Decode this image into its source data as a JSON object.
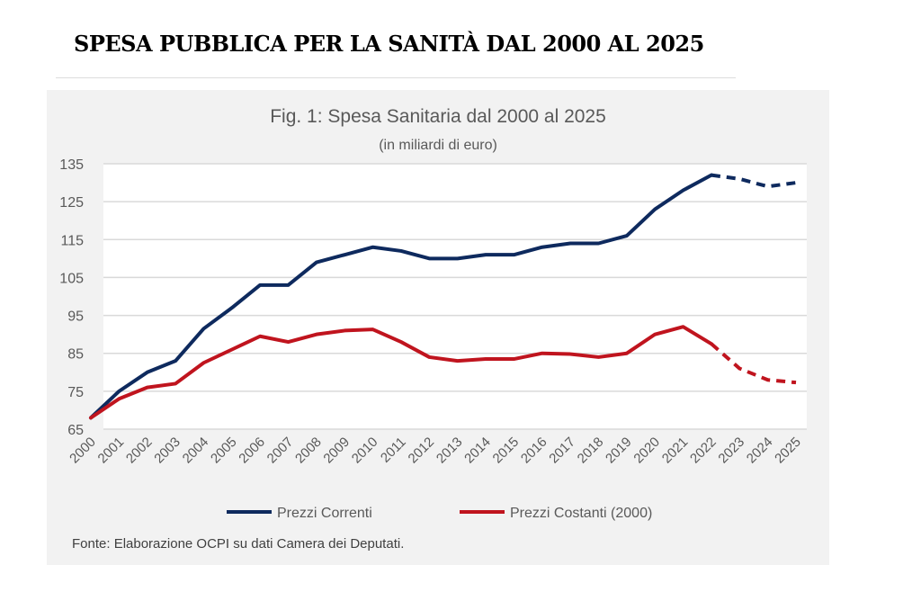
{
  "page_heading": "SPESA PUBBLICA PER LA SANITÀ DAL 2000 AL 2025",
  "chart_data": {
    "type": "line",
    "title": "Fig. 1: Spesa Sanitaria dal 2000 al 2025",
    "subtitle": "(in miliardi di euro)",
    "source": "Fonte: Elaborazione OCPI su dati Camera dei Deputati.",
    "x": [
      "2000",
      "2001",
      "2002",
      "2003",
      "2004",
      "2005",
      "2006",
      "2007",
      "2008",
      "2009",
      "2010",
      "2011",
      "2012",
      "2013",
      "2014",
      "2015",
      "2016",
      "2017",
      "2018",
      "2019",
      "2020",
      "2021",
      "2022",
      "2023",
      "2024",
      "2025"
    ],
    "ylim": [
      65,
      135
    ],
    "yticks": [
      65,
      75,
      85,
      95,
      105,
      115,
      125,
      135
    ],
    "grid": true,
    "legend": "bottom",
    "projection_from": "2022",
    "series": [
      {
        "name": "Prezzi Correnti",
        "color": "#0e2a5e",
        "values": [
          68,
          75,
          80,
          83,
          91.5,
          97,
          103,
          103,
          109,
          111,
          113,
          112,
          110,
          110,
          111,
          111,
          113,
          114,
          114,
          116,
          123,
          128,
          132,
          131,
          129,
          130
        ]
      },
      {
        "name": "Prezzi Costanti (2000)",
        "color": "#c0141e",
        "values": [
          68,
          73,
          76,
          77,
          82.5,
          86,
          89.5,
          88,
          90,
          91,
          91.3,
          88,
          84,
          83,
          83.5,
          83.5,
          85,
          84.8,
          84,
          85,
          90,
          92,
          87.5,
          81,
          78,
          77.3
        ]
      }
    ]
  }
}
